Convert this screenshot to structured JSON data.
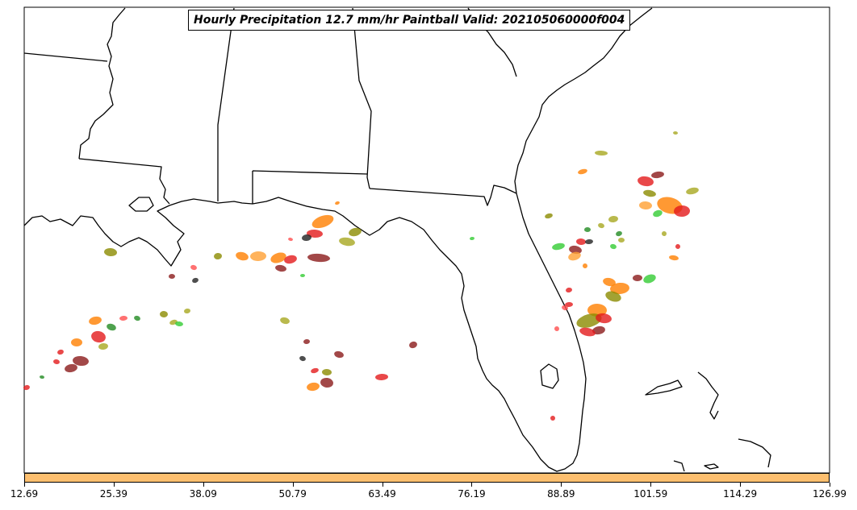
{
  "title": "Hourly Precipitation 12.7 mm/hr Paintball Valid: 202105060000f004",
  "colorbar": {
    "color": "#fdbf6f",
    "tick_labels": [
      "12.69",
      "25.39",
      "38.09",
      "50.79",
      "63.49",
      "76.19",
      "88.89",
      "101.59",
      "114.29",
      "126.99"
    ]
  },
  "member_colors": [
    "#e31a1c",
    "#ff4d4d",
    "#ff7f00",
    "#ffa033",
    "#33cc33",
    "#228b22",
    "#8b8b00",
    "#a8a820",
    "#8b1a1a",
    "#222222"
  ],
  "map": {
    "border_color": "#000000",
    "background": "#ffffff"
  }
}
